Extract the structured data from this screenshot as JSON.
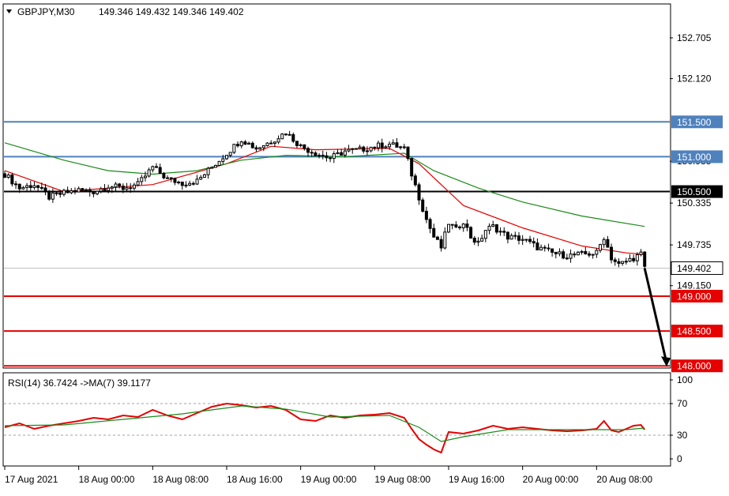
{
  "header": {
    "symbol": "GBPJPY,M30",
    "ohlc": "149.346 149.432 149.346 149.402"
  },
  "rsi_header": {
    "label": "RSI(14) 36.7424  ->MA(7) 39.1177"
  },
  "colors": {
    "resistance": "#4f81bd",
    "pivot": "#000000",
    "support": "#e60000",
    "ma_fast": "#e60000",
    "ma_slow": "#1a8a1a",
    "rsi_line": "#e60000",
    "rsi_ma": "#1a8a1a",
    "current_price_line": "#c0c0c0",
    "arrow": "#000000"
  },
  "chart_data": [
    {
      "type": "candlestick",
      "title": "GBPJPY,M30",
      "ylim": [
        147.98,
        153.18
      ],
      "y_ticks": [
        "152.705",
        "152.120",
        "150.935",
        "150.335",
        "149.735",
        "149.150"
      ],
      "x_ticks": [
        "17 Aug 2021",
        "18 Aug 00:00",
        "18 Aug 08:00",
        "18 Aug 16:00",
        "19 Aug 00:00",
        "19 Aug 08:00",
        "19 Aug 16:00",
        "20 Aug 00:00",
        "20 Aug 08:00"
      ],
      "last_price": "149.402",
      "close_path": [
        [
          0,
          150.75
        ],
        [
          4,
          150.55
        ],
        [
          8,
          150.6
        ],
        [
          12,
          150.42
        ],
        [
          16,
          150.48
        ],
        [
          20,
          150.52
        ],
        [
          24,
          150.5
        ],
        [
          28,
          150.58
        ],
        [
          32,
          150.55
        ],
        [
          36,
          150.6
        ],
        [
          40,
          150.85
        ],
        [
          44,
          150.68
        ],
        [
          48,
          150.62
        ],
        [
          52,
          150.65
        ],
        [
          56,
          150.85
        ],
        [
          60,
          151.05
        ],
        [
          64,
          151.25
        ],
        [
          68,
          151.12
        ],
        [
          72,
          151.22
        ],
        [
          76,
          151.35
        ],
        [
          80,
          151.15
        ],
        [
          84,
          151.05
        ],
        [
          88,
          150.98
        ],
        [
          92,
          151.08
        ],
        [
          96,
          151.1
        ],
        [
          100,
          151.15
        ],
        [
          104,
          151.18
        ],
        [
          108,
          151.12
        ],
        [
          110,
          150.75
        ],
        [
          112,
          150.42
        ],
        [
          114,
          150.1
        ],
        [
          116,
          149.85
        ],
        [
          118,
          149.7
        ],
        [
          120,
          150.05
        ],
        [
          122,
          149.95
        ],
        [
          124,
          150.08
        ],
        [
          126,
          149.85
        ],
        [
          128,
          149.75
        ],
        [
          130,
          149.95
        ],
        [
          132,
          150.0
        ],
        [
          136,
          149.85
        ],
        [
          140,
          149.82
        ],
        [
          144,
          149.7
        ],
        [
          148,
          149.62
        ],
        [
          152,
          149.58
        ],
        [
          156,
          149.6
        ],
        [
          160,
          149.62
        ],
        [
          162,
          149.85
        ],
        [
          164,
          149.55
        ],
        [
          166,
          149.45
        ],
        [
          168,
          149.5
        ],
        [
          170,
          149.55
        ],
        [
          172,
          149.6
        ],
        [
          173,
          149.4
        ]
      ],
      "series": [
        {
          "name": "MA fast",
          "points": [
            [
              0,
              150.8
            ],
            [
              16,
              150.5
            ],
            [
              40,
              150.6
            ],
            [
              60,
              150.9
            ],
            [
              72,
              151.15
            ],
            [
              84,
              151.1
            ],
            [
              104,
              151.12
            ],
            [
              112,
              150.9
            ],
            [
              124,
              150.3
            ],
            [
              140,
              149.98
            ],
            [
              156,
              149.72
            ],
            [
              168,
              149.62
            ],
            [
              173,
              149.6
            ]
          ]
        },
        {
          "name": "MA slow",
          "points": [
            [
              0,
              151.2
            ],
            [
              16,
              150.95
            ],
            [
              28,
              150.8
            ],
            [
              40,
              150.75
            ],
            [
              52,
              150.8
            ],
            [
              64,
              150.95
            ],
            [
              76,
              151.02
            ],
            [
              92,
              151.0
            ],
            [
              108,
              151.05
            ],
            [
              116,
              150.8
            ],
            [
              128,
              150.55
            ],
            [
              140,
              150.35
            ],
            [
              156,
              150.15
            ],
            [
              173,
              150.0
            ]
          ]
        }
      ],
      "horizontal_levels": [
        {
          "value": "151.500",
          "role": "resistance"
        },
        {
          "value": "151.000",
          "role": "resistance"
        },
        {
          "value": "150.500",
          "role": "pivot"
        },
        {
          "value": "149.000",
          "role": "support"
        },
        {
          "value": "148.500",
          "role": "support"
        },
        {
          "value": "148.000",
          "role": "support"
        }
      ],
      "arrow": {
        "from": [
          173,
          149.4
        ],
        "to": [
          180,
          148.0
        ]
      }
    },
    {
      "type": "line",
      "title": "RSI(14) 36.7424  ->MA(7) 39.1177",
      "ylim": [
        -8,
        108
      ],
      "y_ticks": [
        "100",
        "70",
        "30",
        "0"
      ],
      "dashed_levels": [
        70,
        30
      ],
      "series": [
        {
          "name": "RSI(14)",
          "points": [
            [
              0,
              40
            ],
            [
              4,
              45
            ],
            [
              8,
              38
            ],
            [
              12,
              42
            ],
            [
              16,
              45
            ],
            [
              20,
              48
            ],
            [
              24,
              52
            ],
            [
              28,
              50
            ],
            [
              32,
              55
            ],
            [
              36,
              53
            ],
            [
              40,
              62
            ],
            [
              44,
              55
            ],
            [
              48,
              50
            ],
            [
              52,
              58
            ],
            [
              56,
              66
            ],
            [
              60,
              70
            ],
            [
              64,
              68
            ],
            [
              68,
              65
            ],
            [
              72,
              67
            ],
            [
              76,
              62
            ],
            [
              80,
              50
            ],
            [
              84,
              48
            ],
            [
              88,
              55
            ],
            [
              92,
              52
            ],
            [
              96,
              55
            ],
            [
              100,
              56
            ],
            [
              104,
              58
            ],
            [
              108,
              52
            ],
            [
              110,
              38
            ],
            [
              112,
              25
            ],
            [
              114,
              18
            ],
            [
              116,
              12
            ],
            [
              118,
              8
            ],
            [
              120,
              34
            ],
            [
              124,
              32
            ],
            [
              128,
              36
            ],
            [
              132,
              42
            ],
            [
              136,
              38
            ],
            [
              140,
              40
            ],
            [
              144,
              38
            ],
            [
              148,
              36
            ],
            [
              152,
              35
            ],
            [
              156,
              36
            ],
            [
              160,
              38
            ],
            [
              162,
              48
            ],
            [
              164,
              36
            ],
            [
              166,
              34
            ],
            [
              168,
              38
            ],
            [
              170,
              42
            ],
            [
              172,
              43
            ],
            [
              173,
              37
            ]
          ]
        },
        {
          "name": "MA(7)",
          "points": [
            [
              0,
              42
            ],
            [
              16,
              43
            ],
            [
              32,
              50
            ],
            [
              48,
              57
            ],
            [
              64,
              67
            ],
            [
              76,
              63
            ],
            [
              88,
              53
            ],
            [
              104,
              55
            ],
            [
              112,
              40
            ],
            [
              118,
              22
            ],
            [
              124,
              28
            ],
            [
              136,
              37
            ],
            [
              156,
              37
            ],
            [
              168,
              37
            ],
            [
              173,
              39
            ]
          ]
        }
      ]
    }
  ]
}
